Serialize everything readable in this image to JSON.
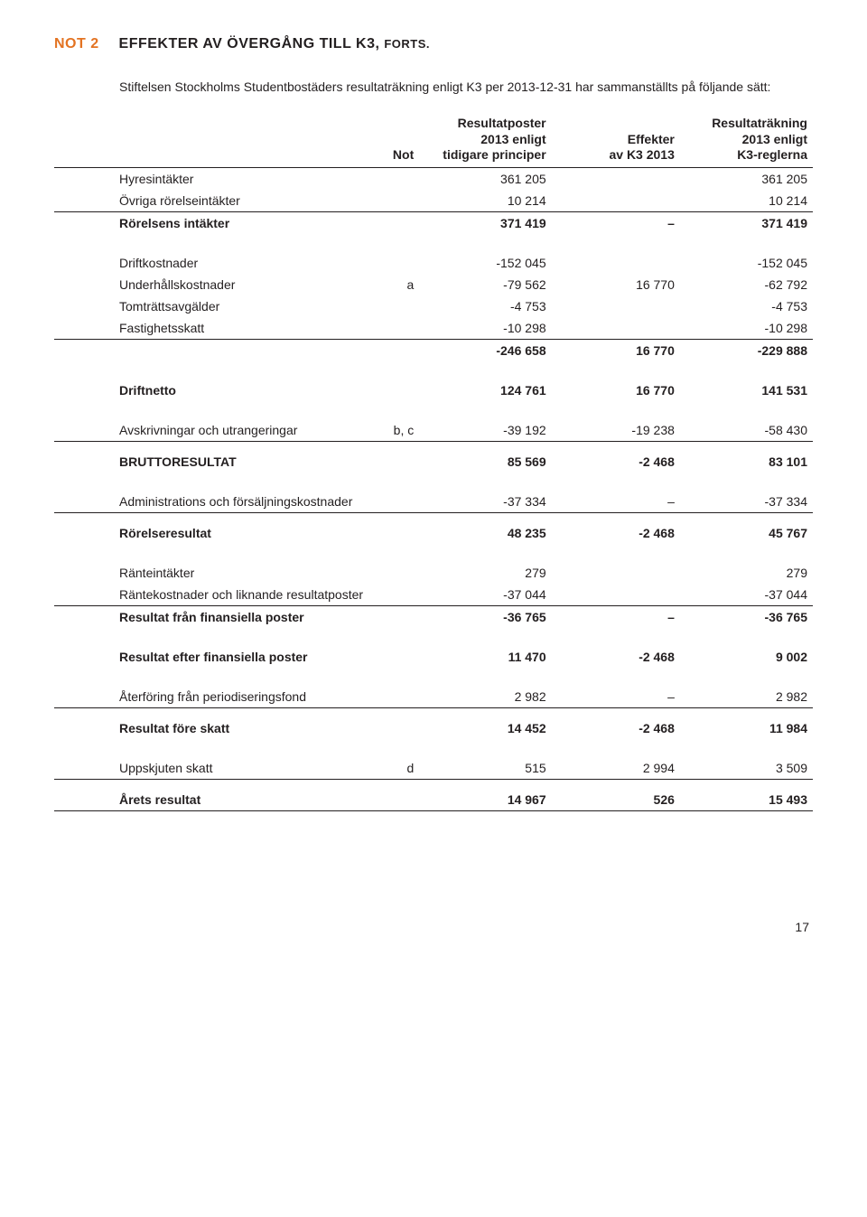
{
  "heading": {
    "not_label": "NOT 2",
    "title": "EFFEKTER AV ÖVERGÅNG TILL K3, ",
    "title_sub": "FORTS."
  },
  "intro": "Stiftelsen Stockholms Studentbostäders resultaträkning enligt K3 per 2013-12-31 har sammanställts på följande sätt:",
  "columns": {
    "note": "Not",
    "c1_l1": "Resultatposter",
    "c1_l2": "2013 enligt",
    "c1_l3": "tidigare principer",
    "c2_l1": "Effekter",
    "c2_l2": "av K3 2013",
    "c3_l1": "Resultaträkning",
    "c3_l2": "2013 enligt",
    "c3_l3": "K3-reglerna"
  },
  "rows": {
    "r0": {
      "label": "Hyresintäkter",
      "c1": "361 205",
      "c2": "",
      "c3": "361 205"
    },
    "r1": {
      "label": "Övriga rörelseintäkter",
      "c1": "10 214",
      "c2": "",
      "c3": "10 214"
    },
    "r2": {
      "label": "Rörelsens intäkter",
      "c1": "371 419",
      "c2": "–",
      "c3": "371 419"
    },
    "r3": {
      "label": "Driftkostnader",
      "c1": "-152 045",
      "c2": "",
      "c3": "-152 045"
    },
    "r4": {
      "label": "Underhållskostnader",
      "note": "a",
      "c1": "-79 562",
      "c2": "16 770",
      "c3": "-62 792"
    },
    "r5": {
      "label": "Tomträttsavgälder",
      "c1": "-4 753",
      "c2": "",
      "c3": "-4 753"
    },
    "r6": {
      "label": "Fastighetsskatt",
      "c1": "-10 298",
      "c2": "",
      "c3": "-10 298"
    },
    "r7": {
      "label": "",
      "c1": "-246 658",
      "c2": "16 770",
      "c3": "-229 888"
    },
    "r8": {
      "label": "Driftnetto",
      "c1": "124 761",
      "c2": "16 770",
      "c3": "141 531"
    },
    "r9": {
      "label": "Avskrivningar och utrangeringar",
      "note": "b, c",
      "c1": "-39 192",
      "c2": "-19 238",
      "c3": "-58 430"
    },
    "r10": {
      "label": "BRUTTORESULTAT",
      "c1": "85 569",
      "c2": "-2 468",
      "c3": "83 101"
    },
    "r11": {
      "label": "Administrations och försäljningskostnader",
      "c1": "-37 334",
      "c2": "–",
      "c3": "-37 334"
    },
    "r12": {
      "label": "Rörelseresultat",
      "c1": "48 235",
      "c2": "-2 468",
      "c3": "45 767"
    },
    "r13": {
      "label": "Ränteintäkter",
      "c1": "279",
      "c2": "",
      "c3": "279"
    },
    "r14": {
      "label": "Räntekostnader och liknande resultatposter",
      "c1": "-37 044",
      "c2": "",
      "c3": "-37 044"
    },
    "r15": {
      "label": "Resultat från finansiella poster",
      "c1": "-36 765",
      "c2": "–",
      "c3": "-36 765"
    },
    "r16": {
      "label": "Resultat efter finansiella poster",
      "c1": "11 470",
      "c2": "-2 468",
      "c3": "9 002"
    },
    "r17": {
      "label": "Återföring från periodiseringsfond",
      "c1": "2 982",
      "c2": "–",
      "c3": "2 982"
    },
    "r18": {
      "label": "Resultat före skatt",
      "c1": "14 452",
      "c2": "-2 468",
      "c3": "11 984"
    },
    "r19": {
      "label": "Uppskjuten skatt",
      "note": "d",
      "c1": "515",
      "c2": "2 994",
      "c3": "3 509"
    },
    "r20": {
      "label": "Årets resultat",
      "c1": "14 967",
      "c2": "526",
      "c3": "15 493"
    }
  },
  "page_number": "17"
}
